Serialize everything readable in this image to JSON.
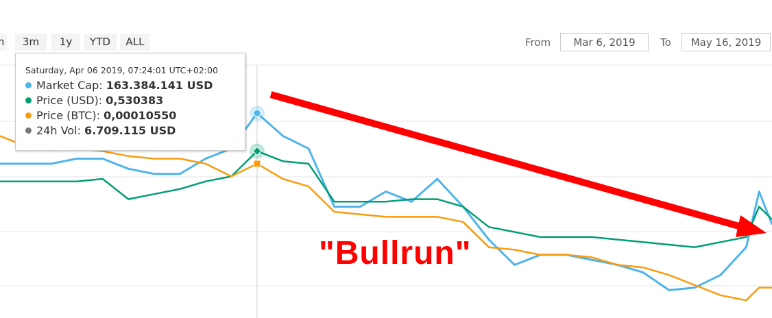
{
  "range_buttons": [
    "m",
    "3m",
    "1y",
    "YTD",
    "ALL"
  ],
  "date_range": {
    "from_label": "From",
    "from_value": "Mar 6, 2019",
    "to_label": "To",
    "to_value": "May 16, 2019"
  },
  "tooltip": {
    "date": "Saturday, Apr 06 2019, 07:24:01 UTC+02:00",
    "rows": [
      {
        "label": "Market Cap: ",
        "value": "163.384.141 USD",
        "color": "#4fb4ea"
      },
      {
        "label": "Price (USD): ",
        "value": "0,530383",
        "color": "#009e73"
      },
      {
        "label": "Price (BTC): ",
        "value": "0,00010550",
        "color": "#f89c0e"
      },
      {
        "label": "24h Vol: ",
        "value": "6.709.115 USD",
        "color": "#777777"
      }
    ]
  },
  "annotation": {
    "text": "\"Bullrun\"",
    "color": "#ff0000",
    "arrow": "red-arrow-down-right"
  },
  "chart_data": {
    "type": "line",
    "grid": true,
    "ylim": [
      0,
      100
    ],
    "crosshair_date": "2019-04-06",
    "x": [
      "2019-03-17",
      "2019-03-19",
      "2019-03-21",
      "2019-03-23",
      "2019-03-25",
      "2019-03-27",
      "2019-03-29",
      "2019-03-31",
      "2019-04-02",
      "2019-04-04",
      "2019-04-06",
      "2019-04-08",
      "2019-04-10",
      "2019-04-12",
      "2019-04-14",
      "2019-04-16",
      "2019-04-18",
      "2019-04-20",
      "2019-04-22",
      "2019-04-24",
      "2019-04-26",
      "2019-04-28",
      "2019-04-30",
      "2019-05-02",
      "2019-05-04",
      "2019-05-06",
      "2019-05-08",
      "2019-05-10",
      "2019-05-12",
      "2019-05-14",
      "2019-05-15",
      "2019-05-16"
    ],
    "series": [
      {
        "name": "Market Cap",
        "color": "#4fb4ea",
        "values": [
          61,
          61,
          61,
          63,
          63,
          59,
          57,
          57,
          63,
          67,
          81,
          72,
          67,
          44,
          44,
          50,
          46,
          55,
          44,
          31,
          21,
          25,
          25,
          23,
          21,
          18,
          11,
          12,
          17,
          28,
          50,
          37
        ]
      },
      {
        "name": "Price (USD)",
        "color": "#009e73",
        "values": [
          54,
          54,
          54,
          54,
          55,
          47,
          49,
          51,
          54,
          56,
          66,
          62,
          61,
          46,
          46,
          46,
          47,
          47,
          44,
          36,
          34,
          32,
          32,
          32,
          31,
          30,
          29,
          28,
          30,
          32,
          44,
          39
        ]
      },
      {
        "name": "Price (BTC)",
        "color": "#f89c0e",
        "values": [
          72,
          68,
          69,
          67,
          66,
          64,
          63,
          63,
          61,
          56,
          61,
          55,
          52,
          42,
          41,
          40,
          40,
          40,
          38,
          28,
          27,
          25,
          25,
          24,
          21,
          20,
          17,
          13,
          9,
          7,
          12,
          12
        ]
      }
    ]
  }
}
